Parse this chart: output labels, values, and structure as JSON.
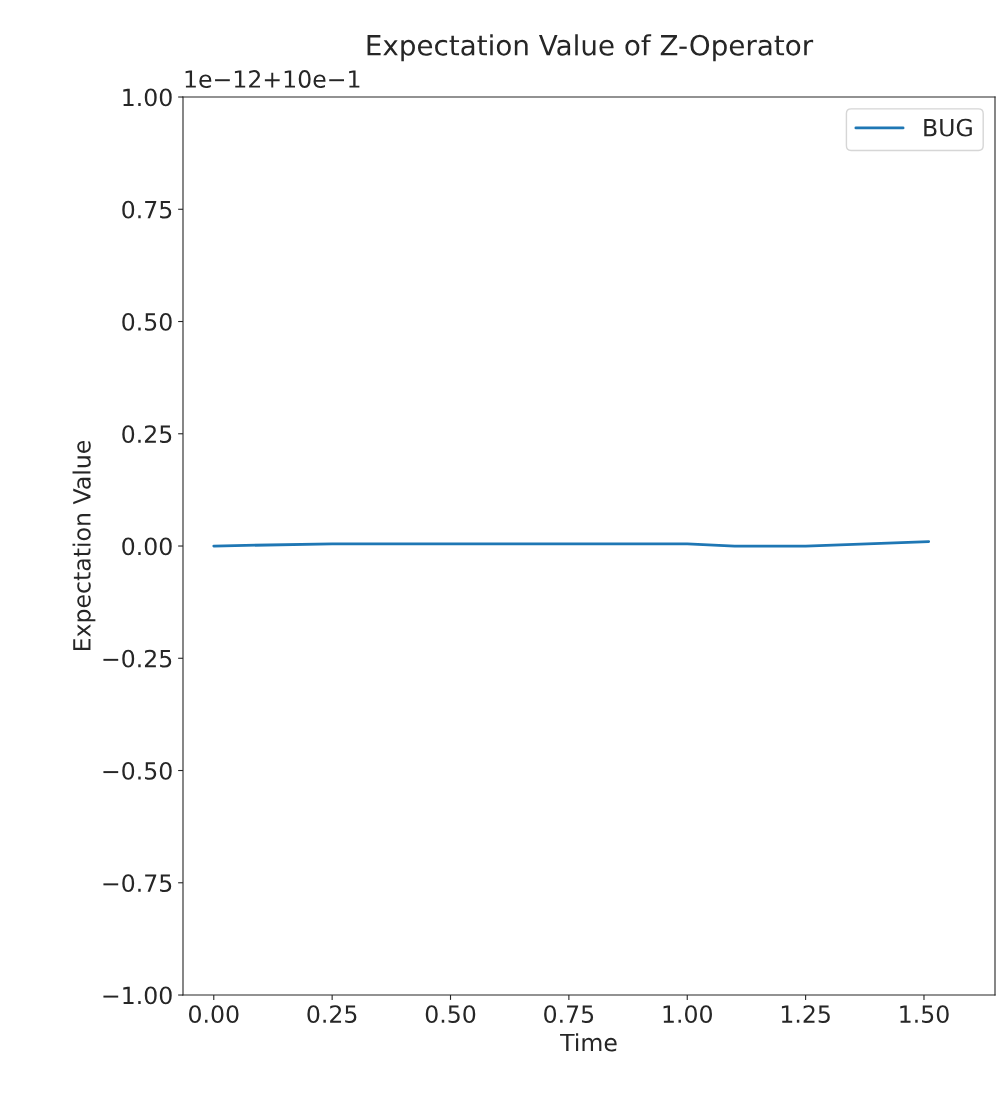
{
  "chart_data": {
    "type": "line",
    "title": "Expectation Value of Z-Operator",
    "xlabel": "Time",
    "ylabel": "Expectation Value",
    "annotations": [
      "1e−12+10e−1"
    ],
    "x": [
      0.0,
      0.25,
      0.5,
      0.75,
      1.0,
      1.1,
      1.25,
      1.51
    ],
    "series": [
      {
        "name": "BUG",
        "color": "#1f77b4",
        "values": [
          0.0,
          0.005,
          0.005,
          0.005,
          0.005,
          0.0,
          0.0,
          0.01
        ]
      }
    ],
    "xlim": [
      -0.065,
      1.65
    ],
    "xticks": [
      {
        "value": 0.0,
        "label": "0.00"
      },
      {
        "value": 0.25,
        "label": "0.25"
      },
      {
        "value": 0.5,
        "label": "0.50"
      },
      {
        "value": 0.75,
        "label": "0.75"
      },
      {
        "value": 1.0,
        "label": "1.00"
      },
      {
        "value": 1.25,
        "label": "1.25"
      },
      {
        "value": 1.5,
        "label": "1.50"
      }
    ],
    "ylim": [
      -1,
      1
    ],
    "yticks": [
      {
        "value": -1,
        "label": "−1.00"
      },
      {
        "value": -0.75,
        "label": "−0.75"
      },
      {
        "value": -0.5,
        "label": "−0.50"
      },
      {
        "value": -0.25,
        "label": "−0.25"
      },
      {
        "value": 0,
        "label": "0.00"
      },
      {
        "value": 0.25,
        "label": "0.25"
      },
      {
        "value": 0.5,
        "label": "0.50"
      },
      {
        "value": 0.75,
        "label": "0.75"
      },
      {
        "value": 1,
        "label": "1.00"
      }
    ],
    "legend": "top right",
    "grid": false
  }
}
